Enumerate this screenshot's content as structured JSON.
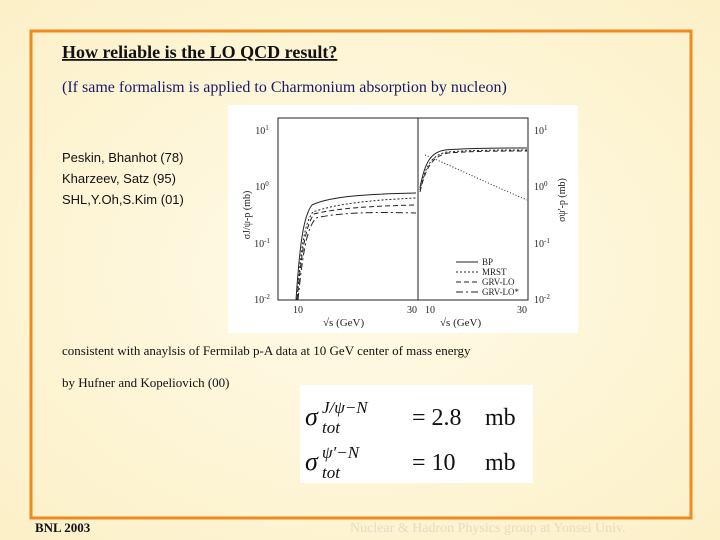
{
  "slide": {
    "title": "How reliable is the LO QCD result?",
    "subtitle": "(If same formalism is applied to Charmonium absorption by nucleon)",
    "references": [
      "Peskin, Bhanhot (78)",
      "Kharzeev, Satz (95)",
      "SHL,Y.Oh,S.Kim (01)"
    ],
    "plot": {
      "left_ylabel": "σJ/ψ-p (mb)",
      "right_ylabel": "σψ'-p (mb)",
      "xlabel": "√s (GeV)",
      "xtick_labels": [
        "10",
        "30"
      ],
      "ytick_labels": [
        {
          "base": "10",
          "exp": "1"
        },
        {
          "base": "10",
          "exp": "0"
        },
        {
          "base": "10",
          "exp": "-1"
        },
        {
          "base": "10",
          "exp": "-2"
        }
      ],
      "legend": [
        "BP",
        "MRST",
        "GRV-LO",
        "GRV-LO*"
      ]
    },
    "consistent_text": "consistent with anaylsis of Fermilab p-A data  at 10 GeV center of mass energy",
    "by_text": "by Hufner and Kopeliovich (00)",
    "formulas": [
      {
        "symbol": "σ",
        "sup": "J/ψ−N",
        "sub": "tot",
        "value": "= 2.8",
        "unit": "mb"
      },
      {
        "symbol": "σ",
        "sup": "ψ′−N",
        "sub": "tot",
        "value": "= 10",
        "unit": "mb"
      }
    ],
    "footer_left": "BNL 2003",
    "footer_right": "Nuclear & Hadron Physics group at Yonsei Univ."
  }
}
